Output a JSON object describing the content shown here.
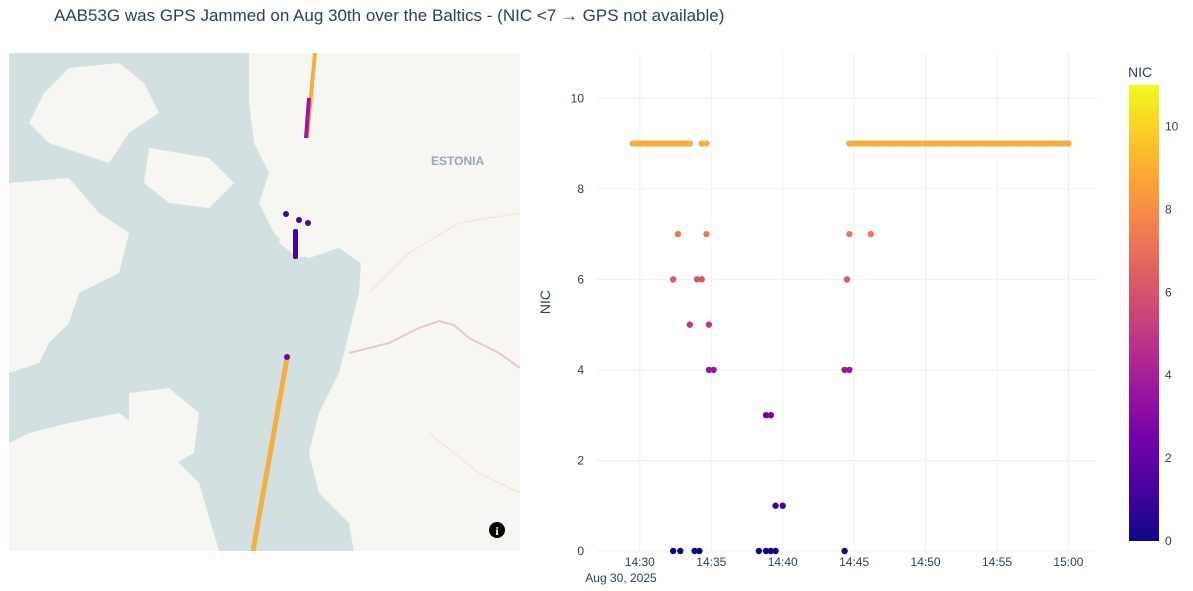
{
  "title": "AAB53G was GPS Jammed on Aug 30th over the Baltics - (NIC <7 → GPS not available)",
  "map": {
    "country_label": "ESTONIA",
    "info_icon": "info-icon"
  },
  "colorbar": {
    "title": "NIC",
    "ticks": [
      "0",
      "2",
      "4",
      "6",
      "8",
      "10"
    ],
    "colorscale": [
      "#0d0887",
      "#46039f",
      "#7201a8",
      "#9c179e",
      "#bd3786",
      "#d8576b",
      "#ed7953",
      "#fb9f3a",
      "#fdca26",
      "#f0f921"
    ],
    "range": [
      0,
      11
    ]
  },
  "chart_data": {
    "type": "scatter",
    "title": "AAB53G was GPS Jammed on Aug 30th over the Baltics - (NIC <7 → GPS not available)",
    "xlabel": "",
    "ylabel": "NIC",
    "ylim": [
      0,
      11
    ],
    "xlim": [
      "14:27",
      "15:02"
    ],
    "x_ticks": [
      "14:30",
      "14:35",
      "14:40",
      "14:45",
      "14:50",
      "14:55",
      "15:00"
    ],
    "x_tick_sub": "Aug 30, 2025",
    "y_ticks": [
      "0",
      "2",
      "4",
      "6",
      "8",
      "10"
    ],
    "grid": true,
    "series": [
      {
        "points": [
          [
            "14:29:30",
            9
          ],
          [
            "14:30:00",
            9
          ],
          [
            "14:30:30",
            9
          ],
          [
            "14:31:00",
            9
          ],
          [
            "14:31:30",
            9
          ],
          [
            "14:32:00",
            9
          ],
          [
            "14:32:30",
            9
          ],
          [
            "14:33:00",
            9
          ],
          [
            "14:33:30",
            9
          ],
          [
            "14:34:20",
            9
          ],
          [
            "14:34:40",
            9
          ],
          [
            "14:32:20",
            6
          ],
          [
            "14:32:40",
            7
          ],
          [
            "14:33:30",
            5
          ],
          [
            "14:34:00",
            6
          ],
          [
            "14:34:20",
            6
          ],
          [
            "14:34:40",
            7
          ],
          [
            "14:34:50",
            5
          ],
          [
            "14:34:50",
            4
          ],
          [
            "14:35:10",
            4
          ],
          [
            "14:32:20",
            0
          ],
          [
            "14:32:50",
            0
          ],
          [
            "14:33:50",
            0
          ],
          [
            "14:34:10",
            0
          ],
          [
            "14:38:20",
            0
          ],
          [
            "14:38:50",
            0
          ],
          [
            "14:39:10",
            0
          ],
          [
            "14:39:30",
            0
          ],
          [
            "14:38:50",
            3
          ],
          [
            "14:39:10",
            3
          ],
          [
            "14:39:30",
            1
          ],
          [
            "14:40:00",
            1
          ],
          [
            "14:44:20",
            0
          ],
          [
            "14:44:20",
            4
          ],
          [
            "14:44:40",
            4
          ],
          [
            "14:44:30",
            6
          ],
          [
            "14:44:40",
            7
          ],
          [
            "14:46:10",
            7
          ],
          [
            "14:44:40",
            9
          ],
          [
            "14:45:30",
            9
          ],
          [
            "14:46:30",
            9
          ],
          [
            "14:47:30",
            9
          ],
          [
            "14:48:30",
            9
          ],
          [
            "14:49:30",
            9
          ],
          [
            "14:50:30",
            9
          ],
          [
            "14:51:30",
            9
          ],
          [
            "14:52:30",
            9
          ],
          [
            "14:53:30",
            9
          ],
          [
            "14:54:30",
            9
          ],
          [
            "14:55:30",
            9
          ],
          [
            "14:56:30",
            9
          ],
          [
            "14:57:30",
            9
          ],
          [
            "14:58:30",
            9
          ],
          [
            "14:59:30",
            9
          ],
          [
            "15:00:00",
            9
          ]
        ]
      }
    ]
  }
}
